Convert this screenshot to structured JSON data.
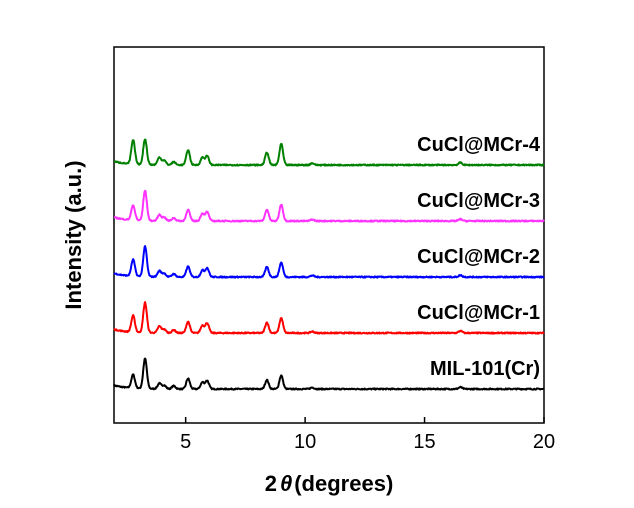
{
  "chart_data": {
    "type": "line",
    "xlabel_prefix": "2",
    "xlabel_theta": "θ",
    "xlabel_suffix": "(degrees)",
    "ylabel": "Intensity (a.u.)",
    "xlim": [
      2,
      20
    ],
    "xticks": [
      5,
      10,
      15,
      20
    ],
    "xtick_labels": [
      "5",
      "10",
      "15",
      "20"
    ],
    "y_ticks_shown": false,
    "grid": false,
    "peaks_deg": [
      2.8,
      3.3,
      3.9,
      4.1,
      4.5,
      5.1,
      5.7,
      5.9,
      8.4,
      9.0,
      10.3,
      16.5
    ],
    "series": [
      {
        "name": "MIL-101(Cr)",
        "color": "#000000",
        "offset": 0,
        "peak_heights": [
          0.45,
          1.0,
          0.18,
          0.12,
          0.1,
          0.35,
          0.22,
          0.28,
          0.3,
          0.45,
          0.05,
          0.06
        ]
      },
      {
        "name": "CuCl@MCr-1",
        "color": "#ff0000",
        "offset": 1,
        "peak_heights": [
          0.55,
          1.0,
          0.22,
          0.12,
          0.1,
          0.38,
          0.25,
          0.33,
          0.35,
          0.5,
          0.05,
          0.07
        ]
      },
      {
        "name": "CuCl@MCr-2",
        "color": "#0000ff",
        "offset": 2,
        "peak_heights": [
          0.55,
          1.0,
          0.2,
          0.12,
          0.1,
          0.35,
          0.22,
          0.3,
          0.33,
          0.48,
          0.05,
          0.06
        ]
      },
      {
        "name": "CuCl@MCr-3",
        "color": "#ff33ff",
        "offset": 3,
        "peak_heights": [
          0.5,
          1.0,
          0.2,
          0.12,
          0.1,
          0.38,
          0.25,
          0.3,
          0.38,
          0.55,
          0.05,
          0.06
        ]
      },
      {
        "name": "CuCl@MCr-4",
        "color": "#008000",
        "offset": 4,
        "peak_heights": [
          0.8,
          0.85,
          0.25,
          0.15,
          0.1,
          0.5,
          0.25,
          0.3,
          0.42,
          0.7,
          0.06,
          0.08
        ]
      }
    ]
  }
}
